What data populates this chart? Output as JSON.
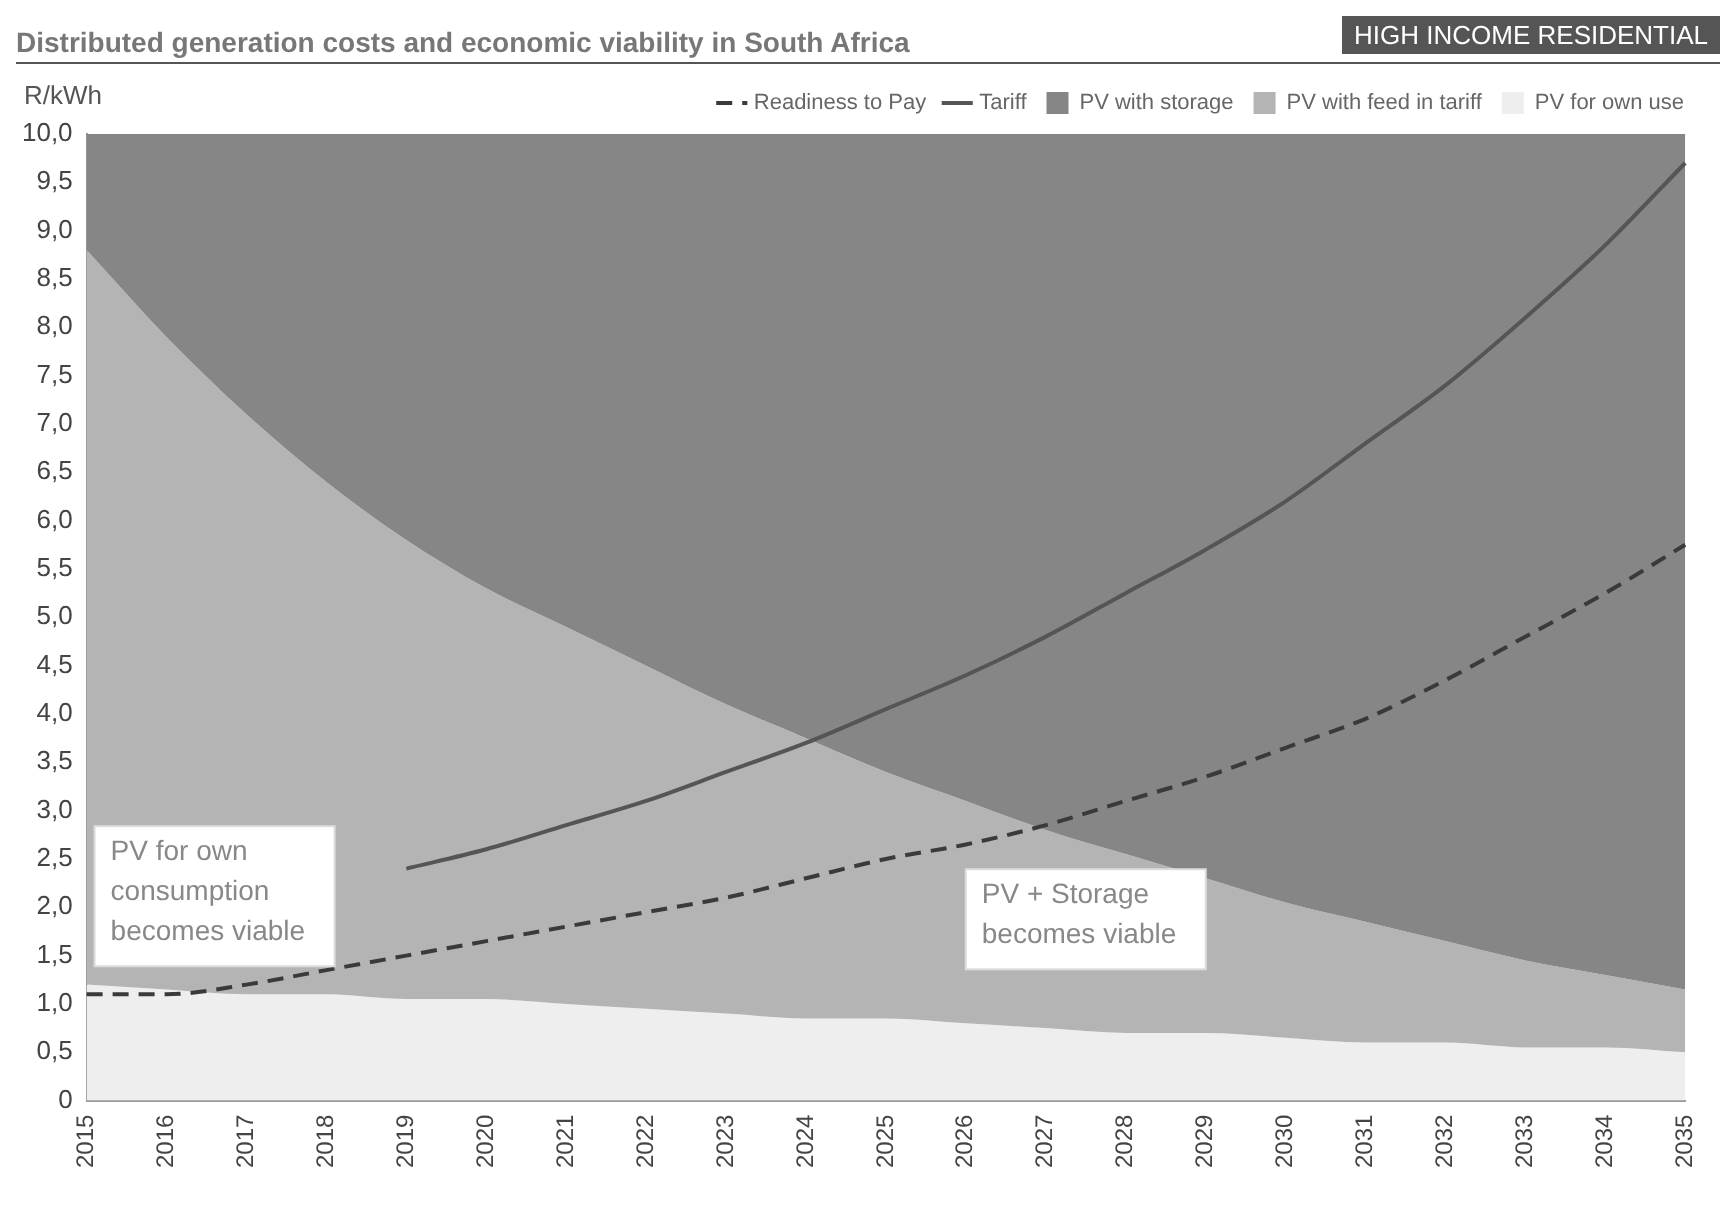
{
  "chart_data": {
    "type": "area",
    "title": "Distributed generation costs and economic viability in South Africa",
    "subtitle": "HIGH INCOME RESIDENTIAL",
    "ylabel": "R/kWh",
    "categories": [
      "2015",
      "2016",
      "2017",
      "2018",
      "2019",
      "2020",
      "2021",
      "2022",
      "2023",
      "2024",
      "2025",
      "2026",
      "2027",
      "2028",
      "2029",
      "2030",
      "2031",
      "2032",
      "2033",
      "2034",
      "2035"
    ],
    "series": [
      {
        "name": "PV for own use",
        "color": "#eeeeee",
        "values": [
          1.2,
          1.15,
          1.1,
          1.1,
          1.05,
          1.05,
          1.0,
          0.95,
          0.9,
          0.85,
          0.85,
          0.8,
          0.75,
          0.7,
          0.7,
          0.65,
          0.6,
          0.6,
          0.55,
          0.55,
          0.5
        ]
      },
      {
        "name": "PV with feed in tariff",
        "color": "#b4b4b4",
        "values": [
          8.8,
          7.9,
          7.1,
          6.4,
          5.8,
          5.3,
          4.9,
          4.5,
          4.1,
          3.75,
          3.4,
          3.1,
          2.8,
          2.55,
          2.3,
          2.05,
          1.85,
          1.65,
          1.45,
          1.3,
          1.15
        ]
      },
      {
        "name": "PV with storage",
        "color": "#868686",
        "values": [
          10,
          10,
          10,
          10,
          10,
          10,
          10,
          10,
          10,
          10,
          10,
          10,
          10,
          10,
          10,
          10,
          10,
          10,
          10,
          10,
          10
        ]
      },
      {
        "name": "Tariff",
        "type": "line",
        "color": "#555555",
        "line_style": "solid",
        "values": [
          null,
          null,
          null,
          null,
          2.4,
          2.6,
          2.85,
          3.1,
          3.4,
          3.7,
          4.05,
          4.4,
          4.8,
          5.25,
          5.7,
          6.2,
          6.8,
          7.4,
          8.1,
          8.85,
          9.7
        ]
      },
      {
        "name": "Readiness to Pay",
        "type": "line",
        "color": "#3a3a3a",
        "line_style": "dashed",
        "values": [
          1.1,
          1.1,
          1.2,
          1.35,
          1.5,
          1.65,
          1.8,
          1.95,
          2.1,
          2.3,
          2.5,
          2.65,
          2.85,
          3.1,
          3.35,
          3.65,
          3.95,
          4.35,
          4.8,
          5.25,
          5.75
        ]
      }
    ],
    "ylim": [
      0,
      10
    ],
    "yticks": [
      0,
      {
        "value": 0.5,
        "label": "0,5"
      },
      {
        "value": 1,
        "label": "1,0"
      },
      {
        "value": 1.5,
        "label": "1,5"
      },
      {
        "value": 2,
        "label": "2,0"
      },
      {
        "value": 2.5,
        "label": "2,5"
      },
      {
        "value": 3,
        "label": "3,0"
      },
      {
        "value": 3.5,
        "label": "3,5"
      },
      {
        "value": 4,
        "label": "4,0"
      },
      {
        "value": 4.5,
        "label": "4,5"
      },
      {
        "value": 5,
        "label": "5,0"
      },
      {
        "value": 5.5,
        "label": "5,5"
      },
      {
        "value": 6,
        "label": "6,0"
      },
      {
        "value": 6.5,
        "label": "6,5"
      },
      {
        "value": 7,
        "label": "7,0"
      },
      {
        "value": 7.5,
        "label": "7,5"
      },
      {
        "value": 8,
        "label": "8,0"
      },
      {
        "value": 8.5,
        "label": "8,5"
      },
      {
        "value": 9,
        "label": "9,0"
      },
      {
        "value": 9.5,
        "label": "9,5"
      },
      {
        "value": 10,
        "label": "10,0"
      }
    ],
    "grid": false,
    "legend": "top right",
    "marker": "none",
    "annotations": [
      {
        "text": "PV for own consumption becomes viable",
        "x": "2016",
        "y": 1.1
      },
      {
        "text": "PV + Storage becomes viable",
        "x": "2027",
        "y": 2.85
      }
    ]
  }
}
